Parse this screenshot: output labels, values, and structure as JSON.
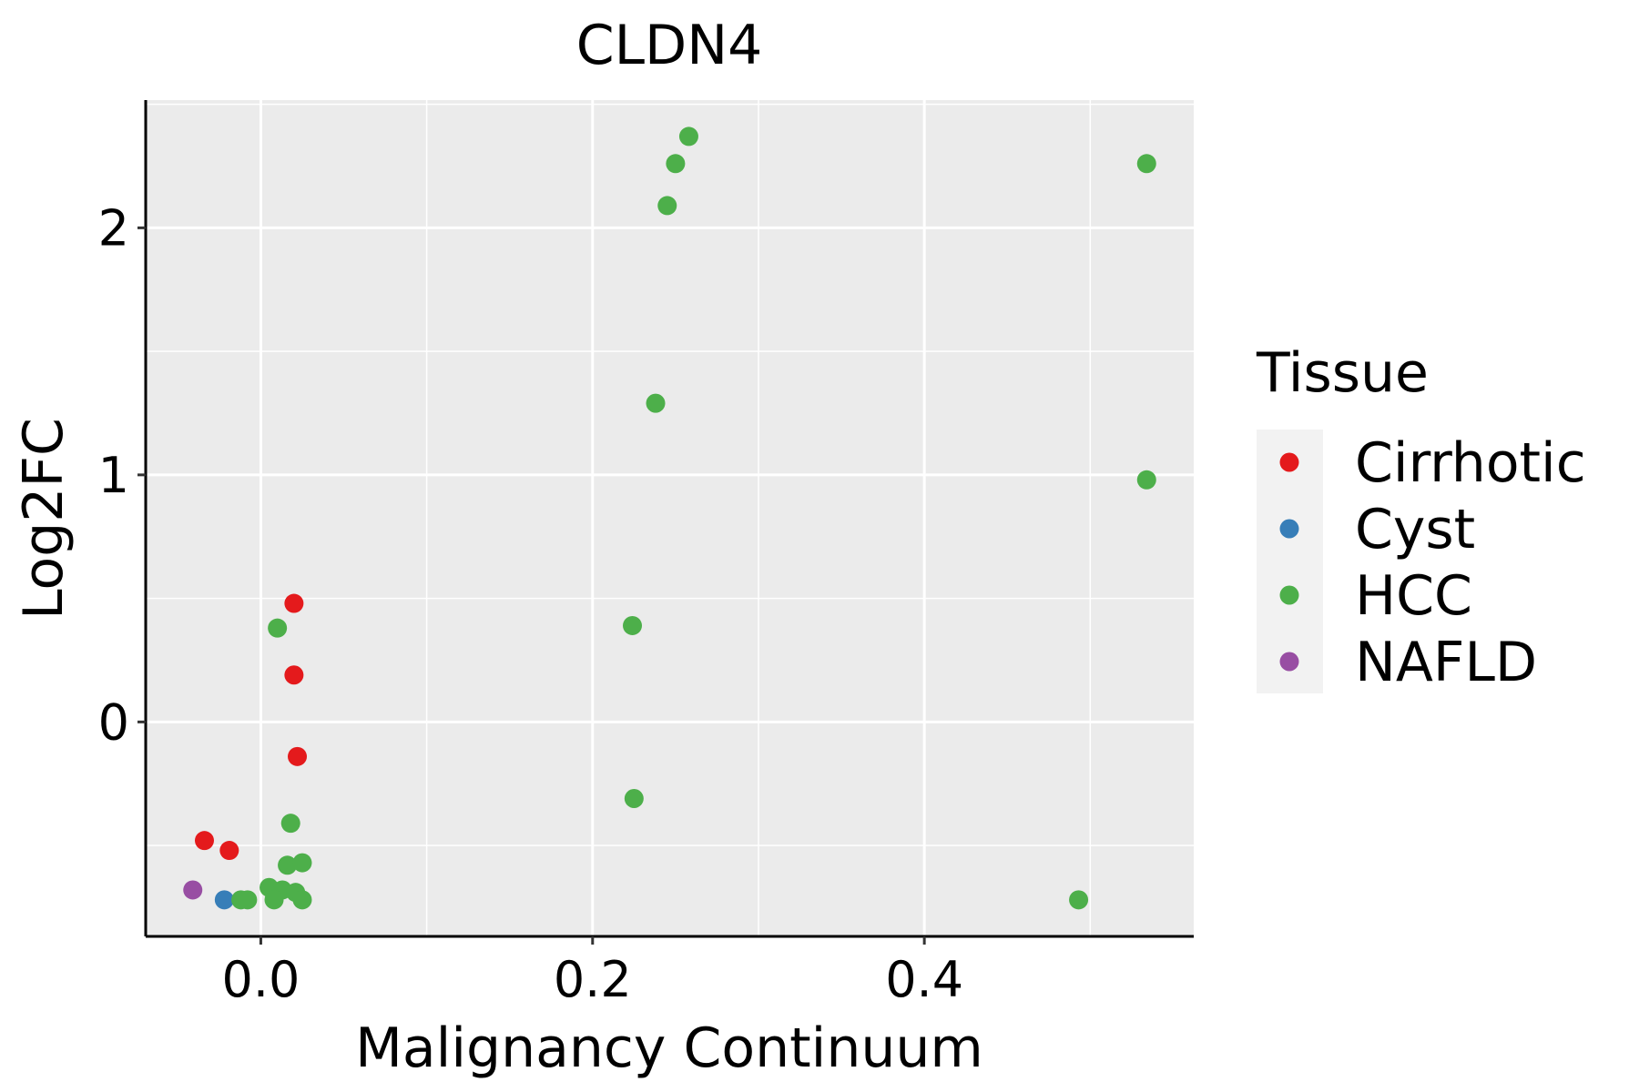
{
  "chart_data": {
    "type": "scatter",
    "title": "CLDN4",
    "xlabel": "Malignancy Continuum",
    "ylabel": "Log2FC",
    "xlim": [
      -0.0694,
      0.5624
    ],
    "ylim": [
      -0.868,
      2.517
    ],
    "xticks": [
      0.0,
      0.2,
      0.4
    ],
    "xtick_labels": [
      "0.0",
      "0.2",
      "0.4"
    ],
    "yticks": [
      0,
      1,
      2
    ],
    "ytick_labels": [
      "0",
      "1",
      "2"
    ],
    "grid": true,
    "legend": {
      "title": "Tissue",
      "placement": "right"
    },
    "series": [
      {
        "name": "Cirrhotic",
        "color": "#E41A1C",
        "points": [
          [
            0.02,
            0.48
          ],
          [
            0.02,
            0.19
          ],
          [
            0.022,
            -0.14
          ],
          [
            -0.034,
            -0.48
          ],
          [
            -0.019,
            -0.52
          ]
        ]
      },
      {
        "name": "Cyst",
        "color": "#377EB8",
        "points": [
          [
            -0.022,
            -0.72
          ]
        ]
      },
      {
        "name": "HCC",
        "color": "#4DAF4A",
        "points": [
          [
            0.01,
            0.38
          ],
          [
            0.018,
            -0.41
          ],
          [
            0.016,
            -0.58
          ],
          [
            0.025,
            -0.57
          ],
          [
            0.005,
            -0.67
          ],
          [
            0.013,
            -0.68
          ],
          [
            0.021,
            -0.69
          ],
          [
            -0.012,
            -0.72
          ],
          [
            -0.008,
            -0.72
          ],
          [
            0.008,
            -0.72
          ],
          [
            0.025,
            -0.72
          ],
          [
            0.258,
            2.37
          ],
          [
            0.25,
            2.26
          ],
          [
            0.245,
            2.09
          ],
          [
            0.238,
            1.29
          ],
          [
            0.224,
            0.39
          ],
          [
            0.225,
            -0.31
          ],
          [
            0.534,
            2.26
          ],
          [
            0.534,
            0.98
          ],
          [
            0.493,
            -0.72
          ]
        ]
      },
      {
        "name": "NAFLD",
        "color": "#984EA3",
        "points": [
          [
            -0.041,
            -0.68
          ]
        ]
      }
    ]
  }
}
